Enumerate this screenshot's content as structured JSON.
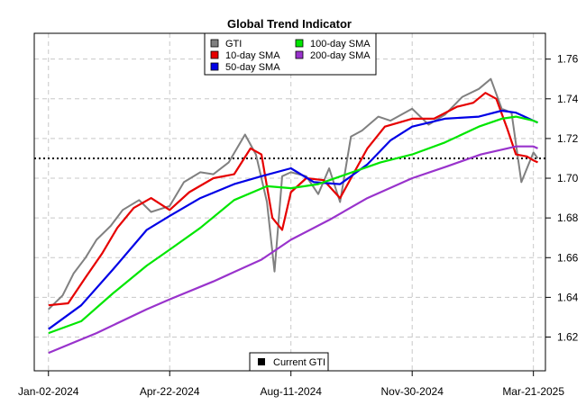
{
  "chart_data": {
    "type": "line",
    "title": "Global Trend Indicator",
    "xlabel": "",
    "ylabel": "",
    "x_ticks": [
      "Jan-02-2024",
      "Apr-22-2024",
      "Aug-11-2024",
      "Nov-30-2024",
      "Mar-21-2025"
    ],
    "y_ticks": [
      1.62,
      1.64,
      1.66,
      1.68,
      1.7,
      1.72,
      1.74,
      1.76
    ],
    "xlim": [
      "2023-12-20",
      "2025-04-01"
    ],
    "ylim": [
      1.603,
      1.773
    ],
    "grid": true,
    "legend_position": "top-center",
    "reference_line": {
      "y": 1.71,
      "style": "dotted",
      "color": "#000000"
    },
    "series": [
      {
        "name": "GTI",
        "color": "#808080",
        "x": [
          "2024-01-02",
          "2024-01-15",
          "2024-01-25",
          "2024-02-05",
          "2024-02-15",
          "2024-02-28",
          "2024-03-10",
          "2024-03-25",
          "2024-04-05",
          "2024-04-22",
          "2024-05-05",
          "2024-05-20",
          "2024-06-01",
          "2024-06-15",
          "2024-06-30",
          "2024-07-10",
          "2024-07-20",
          "2024-07-27",
          "2024-08-03",
          "2024-08-11",
          "2024-08-25",
          "2024-09-05",
          "2024-09-15",
          "2024-09-25",
          "2024-10-05",
          "2024-10-15",
          "2024-10-30",
          "2024-11-10",
          "2024-11-30",
          "2024-12-15",
          "2024-12-30",
          "2025-01-15",
          "2025-01-30",
          "2025-02-10",
          "2025-02-20",
          "2025-03-01",
          "2025-03-10",
          "2025-03-21",
          "2025-03-25"
        ],
        "values": [
          1.634,
          1.641,
          1.652,
          1.66,
          1.669,
          1.676,
          1.684,
          1.689,
          1.683,
          1.686,
          1.698,
          1.703,
          1.702,
          1.708,
          1.722,
          1.712,
          1.688,
          1.653,
          1.701,
          1.703,
          1.701,
          1.692,
          1.705,
          1.688,
          1.721,
          1.724,
          1.731,
          1.729,
          1.735,
          1.727,
          1.732,
          1.741,
          1.745,
          1.75,
          1.735,
          1.733,
          1.698,
          1.713,
          1.71
        ]
      },
      {
        "name": "10-day SMA",
        "color": "#e60000",
        "x": [
          "2024-01-02",
          "2024-01-20",
          "2024-02-05",
          "2024-02-20",
          "2024-03-05",
          "2024-03-20",
          "2024-04-05",
          "2024-04-22",
          "2024-05-10",
          "2024-06-01",
          "2024-06-20",
          "2024-07-05",
          "2024-07-15",
          "2024-07-25",
          "2024-08-03",
          "2024-08-11",
          "2024-08-25",
          "2024-09-10",
          "2024-09-25",
          "2024-10-05",
          "2024-10-20",
          "2024-11-05",
          "2024-11-30",
          "2024-12-20",
          "2025-01-10",
          "2025-01-25",
          "2025-02-05",
          "2025-02-15",
          "2025-02-25",
          "2025-03-05",
          "2025-03-15",
          "2025-03-21",
          "2025-03-25"
        ],
        "values": [
          1.636,
          1.637,
          1.65,
          1.662,
          1.675,
          1.685,
          1.69,
          1.684,
          1.693,
          1.7,
          1.702,
          1.715,
          1.712,
          1.68,
          1.674,
          1.693,
          1.7,
          1.699,
          1.69,
          1.7,
          1.715,
          1.726,
          1.73,
          1.73,
          1.736,
          1.738,
          1.743,
          1.74,
          1.725,
          1.712,
          1.711,
          1.709,
          1.708
        ]
      },
      {
        "name": "50-day SMA",
        "color": "#0000e6",
        "x": [
          "2024-01-02",
          "2024-02-01",
          "2024-03-01",
          "2024-04-01",
          "2024-04-22",
          "2024-05-20",
          "2024-06-20",
          "2024-07-15",
          "2024-08-11",
          "2024-09-01",
          "2024-09-25",
          "2024-10-20",
          "2024-11-10",
          "2024-11-30",
          "2024-12-30",
          "2025-01-30",
          "2025-02-20",
          "2025-03-05",
          "2025-03-21",
          "2025-03-25"
        ],
        "values": [
          1.624,
          1.636,
          1.654,
          1.674,
          1.681,
          1.69,
          1.697,
          1.701,
          1.705,
          1.698,
          1.697,
          1.707,
          1.719,
          1.726,
          1.73,
          1.731,
          1.734,
          1.733,
          1.729,
          1.728
        ]
      },
      {
        "name": "100-day SMA",
        "color": "#00e600",
        "x": [
          "2024-01-02",
          "2024-02-01",
          "2024-03-01",
          "2024-04-01",
          "2024-04-22",
          "2024-05-20",
          "2024-06-20",
          "2024-07-20",
          "2024-08-11",
          "2024-09-05",
          "2024-10-01",
          "2024-11-01",
          "2024-11-30",
          "2024-12-30",
          "2025-01-30",
          "2025-02-20",
          "2025-03-05",
          "2025-03-21",
          "2025-03-25"
        ],
        "values": [
          1.622,
          1.628,
          1.642,
          1.656,
          1.664,
          1.675,
          1.689,
          1.696,
          1.695,
          1.697,
          1.702,
          1.708,
          1.712,
          1.718,
          1.726,
          1.73,
          1.731,
          1.729,
          1.728
        ]
      },
      {
        "name": "200-day SMA",
        "color": "#9933cc",
        "x": [
          "2024-01-02",
          "2024-02-15",
          "2024-04-01",
          "2024-04-22",
          "2024-06-01",
          "2024-07-15",
          "2024-08-11",
          "2024-09-15",
          "2024-10-20",
          "2024-11-30",
          "2025-01-01",
          "2025-02-01",
          "2025-02-25",
          "2025-03-05",
          "2025-03-21",
          "2025-03-25"
        ],
        "values": [
          1.612,
          1.622,
          1.634,
          1.639,
          1.648,
          1.659,
          1.669,
          1.679,
          1.69,
          1.7,
          1.706,
          1.712,
          1.715,
          1.716,
          1.716,
          1.715
        ]
      }
    ],
    "legends": [
      {
        "position": "top",
        "entries": [
          {
            "label": "GTI",
            "color": "#808080"
          },
          {
            "label": "100-day SMA",
            "color": "#00e600"
          },
          {
            "label": "10-day SMA",
            "color": "#e60000"
          },
          {
            "label": "200-day SMA",
            "color": "#9933cc"
          },
          {
            "label": "50-day SMA",
            "color": "#0000e6"
          }
        ]
      },
      {
        "position": "bottom",
        "entries": [
          {
            "label": "Current GTI",
            "color": "#000000"
          }
        ]
      }
    ]
  }
}
